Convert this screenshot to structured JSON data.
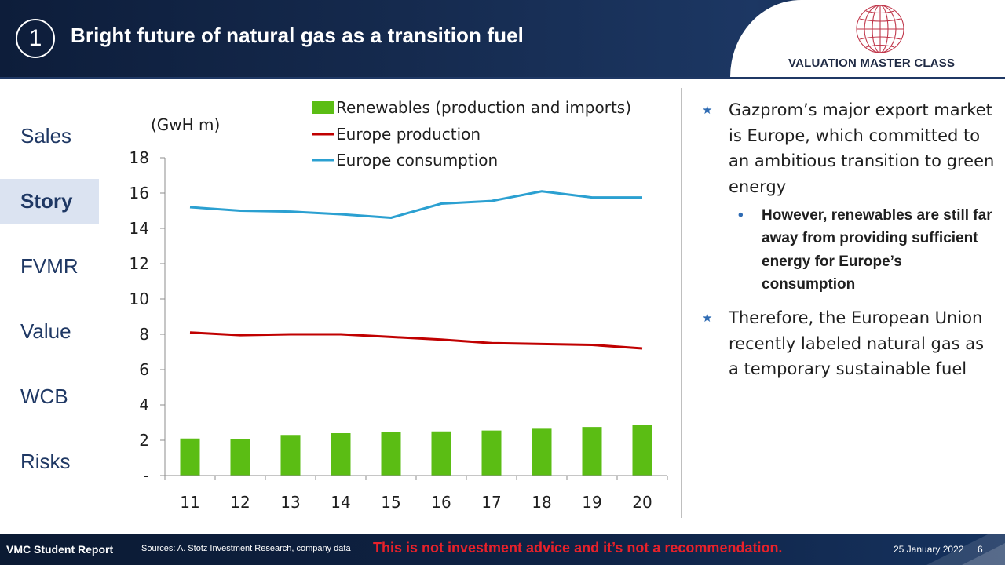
{
  "header": {
    "slide_number": "1",
    "title": "Bright future of natural gas as a transition fuel",
    "logo_text": "VALUATION MASTER CLASS"
  },
  "sidebar": {
    "items": [
      {
        "label": "Sales",
        "active": false
      },
      {
        "label": "Story",
        "active": true
      },
      {
        "label": "FVMR",
        "active": false
      },
      {
        "label": "Value",
        "active": false
      },
      {
        "label": "WCB",
        "active": false
      },
      {
        "label": "Risks",
        "active": false
      }
    ]
  },
  "colors": {
    "renewables": "#5bbd14",
    "production": "#c00000",
    "consumption": "#2ba0d1",
    "accent": "#2e6bb3",
    "header_bg": "#152a4e"
  },
  "chart_data": {
    "type": "bar",
    "ylabel": "(GwH m)",
    "categories": [
      "11",
      "12",
      "13",
      "14",
      "15",
      "16",
      "17",
      "18",
      "19",
      "20"
    ],
    "ylim": [
      0,
      18
    ],
    "yticks": [
      "-",
      "2",
      "4",
      "6",
      "8",
      "10",
      "12",
      "14",
      "16",
      "18"
    ],
    "legend_position": "top",
    "grid": false,
    "series": [
      {
        "name": "Renewables (production and imports)",
        "type": "bar",
        "values": [
          2.1,
          2.05,
          2.3,
          2.4,
          2.45,
          2.5,
          2.55,
          2.65,
          2.75,
          2.85
        ]
      },
      {
        "name": "Europe production",
        "type": "line",
        "values": [
          8.1,
          7.95,
          8.0,
          8.0,
          7.85,
          7.7,
          7.5,
          7.45,
          7.4,
          7.2
        ]
      },
      {
        "name": "Europe consumption",
        "type": "line",
        "values": [
          15.2,
          15.0,
          14.95,
          14.8,
          14.6,
          15.4,
          15.55,
          16.1,
          15.75,
          15.75
        ]
      }
    ]
  },
  "bullets": {
    "p1": "Gazprom’s major export market is Europe, which committed to an ambitious transition to green energy",
    "p1_sub": "However, renewables are still far away from providing sufficient energy for Europe’s consumption",
    "p2": "Therefore, the European Union recently labeled natural gas as a temporary sustainable fuel"
  },
  "footer": {
    "report": "VMC Student Report",
    "sources": "Sources: A. Stotz Investment Research, company data",
    "disclaimer": "This is not investment advice and it’s not a recommendation.",
    "date": "25 January 2022",
    "page": "6"
  }
}
